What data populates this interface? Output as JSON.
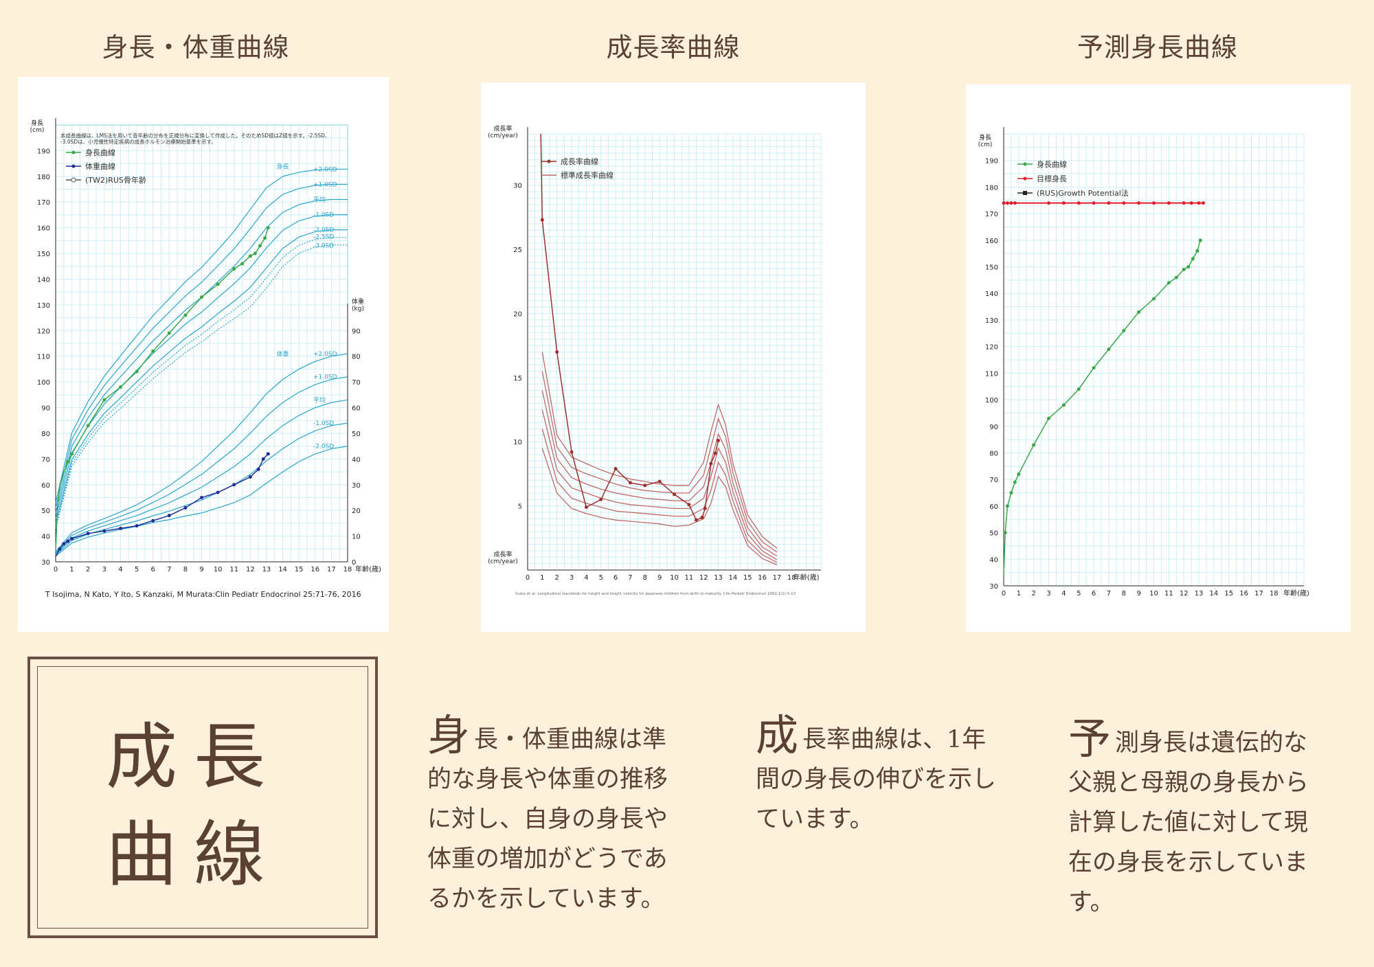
{
  "titles": {
    "left": "身長・体重曲線",
    "middle": "成長率曲線",
    "right": "予測身長曲線"
  },
  "chart_data": [
    {
      "type": "line",
      "title": "身長・体重曲線",
      "note": "本成長曲線は、LMS法を用いて各年齢の分布を正規分布に変換して作成した。そのためSD値はZ値を示す。-2.5SD、-3.0SDは、小児慢性特定疾病の成長ホルモン治療開始基準を示す。",
      "ylabel_left": "身長(cm)",
      "ylabel_right": "体重(kg)",
      "xlabel": "年齢(歳)",
      "x_ticks": [
        0,
        1,
        2,
        3,
        4,
        5,
        6,
        7,
        8,
        9,
        10,
        11,
        12,
        13,
        14,
        15,
        16,
        17,
        18
      ],
      "height_ticks": [
        30,
        40,
        50,
        60,
        70,
        80,
        90,
        100,
        110,
        120,
        130,
        140,
        150,
        160,
        170,
        180,
        190
      ],
      "weight_ticks": [
        0,
        10,
        20,
        30,
        40,
        50,
        60,
        70,
        80,
        90
      ],
      "legend": [
        "身長曲線",
        "体重曲線",
        "(TW2)RUS骨年齢"
      ],
      "height_group_label": "身長",
      "weight_group_label": "体重",
      "height_sd_labels": [
        "+2.0SD",
        "+1.0SD",
        "平均",
        "-1.0SD",
        "-2.0SD",
        "-2.5SD",
        "-3.0SD"
      ],
      "weight_sd_labels": [
        "+2.0SD",
        "+1.0SD",
        "平均",
        "-1.0SD",
        "-2.0SD"
      ],
      "height_reference": {
        "x": [
          0,
          1,
          2,
          3,
          4,
          5,
          6,
          7,
          8,
          9,
          10,
          11,
          12,
          13,
          14,
          15,
          16,
          17,
          18
        ],
        "mean": [
          49,
          75,
          86,
          95,
          102,
          109,
          116,
          122,
          128,
          133,
          139,
          145,
          152,
          160,
          166,
          169,
          170.5,
          171,
          171
        ],
        "sd": [
          2,
          2.6,
          3.2,
          3.6,
          4.1,
          4.5,
          4.9,
          5.2,
          5.5,
          5.8,
          6.2,
          6.8,
          7.6,
          7.8,
          7,
          6.3,
          6,
          5.9,
          5.9
        ],
        "z": [
          2,
          1,
          0,
          -1,
          -2,
          -2.5,
          -3
        ]
      },
      "weight_reference": {
        "x": [
          0,
          1,
          2,
          3,
          4,
          5,
          6,
          7,
          8,
          9,
          10,
          11,
          12,
          13,
          14,
          15,
          16,
          17,
          18
        ],
        "mean": [
          3,
          9.3,
          12,
          14,
          16,
          18,
          20.5,
          23,
          26,
          29,
          33,
          37,
          42,
          48,
          53,
          57,
          60,
          62,
          63
        ],
        "sd": [
          0.4,
          1,
          1.2,
          1.4,
          1.7,
          2.1,
          2.6,
          3.3,
          4.1,
          5,
          6,
          7,
          8,
          8.7,
          9,
          9,
          9,
          9,
          9
        ],
        "z": [
          2,
          1,
          0,
          -1,
          -2
        ]
      },
      "series": [
        {
          "name": "身長曲線",
          "x": [
            0,
            0.1,
            0.25,
            0.5,
            0.75,
            1,
            2,
            3,
            4,
            5,
            6,
            7,
            8,
            9,
            10,
            11,
            11.5,
            12,
            12.3,
            12.6,
            12.9,
            13.1
          ],
          "y": [
            34,
            50,
            60,
            65,
            69,
            72,
            83,
            93,
            98,
            104,
            112,
            119,
            126,
            133,
            138,
            144,
            146,
            149,
            150,
            153,
            156,
            160
          ]
        },
        {
          "name": "体重曲線",
          "x": [
            0,
            0.25,
            0.5,
            0.75,
            1,
            2,
            3,
            4,
            5,
            6,
            7,
            8,
            9,
            10,
            11,
            12,
            12.5,
            12.8,
            13.1
          ],
          "y": [
            2,
            5,
            7,
            8,
            9,
            11,
            12,
            13,
            14,
            16,
            18,
            21,
            25,
            27,
            30,
            33,
            36,
            40,
            42
          ]
        }
      ],
      "citation": "T Isojima, N Kato, Y Ito, S Kanzaki, M Murata:Clin Pediatr Endocrinol 25:71-76, 2016"
    },
    {
      "type": "line",
      "title": "成長率曲線",
      "ylabel": "成長率(cm/year)",
      "ylabel_bottom": "成長率(cm/year)",
      "xlabel": "年齢(歳)",
      "x_ticks": [
        0,
        1,
        2,
        3,
        4,
        5,
        6,
        7,
        8,
        9,
        10,
        11,
        12,
        13,
        14,
        15,
        16,
        17,
        18
      ],
      "y_ticks": [
        5,
        10,
        15,
        20,
        25,
        30
      ],
      "legend": [
        "成長率曲線",
        "標準成長率曲線"
      ],
      "reference_curves": {
        "x": [
          1,
          2,
          3,
          4,
          5,
          6,
          7,
          8,
          9,
          10,
          11,
          12,
          12.5,
          13,
          13.5,
          14,
          15,
          16,
          17
        ],
        "curves": [
          [
            17,
            10.5,
            8.8,
            8.3,
            7.8,
            7.4,
            7.1,
            6.9,
            6.7,
            6.6,
            6.6,
            8.4,
            10.8,
            12.9,
            11.3,
            8.3,
            4.3,
            2.6,
            1.7
          ],
          [
            15.5,
            9.6,
            8,
            7.5,
            7.1,
            6.7,
            6.4,
            6.2,
            6.1,
            6,
            6,
            7.4,
            9.6,
            11.8,
            10.4,
            7.6,
            3.8,
            2.2,
            1.4
          ],
          [
            14,
            8.7,
            7.2,
            6.7,
            6.3,
            6,
            5.8,
            5.6,
            5.5,
            5.4,
            5.4,
            6.5,
            8.4,
            10.6,
            9.4,
            6.8,
            3.3,
            1.8,
            1.1
          ],
          [
            12.5,
            7.8,
            6.4,
            6,
            5.6,
            5.3,
            5.1,
            5,
            4.9,
            4.8,
            4.8,
            5.6,
            7.3,
            9.5,
            8.4,
            6.1,
            2.8,
            1.5,
            0.8
          ],
          [
            11,
            6.9,
            5.6,
            5.2,
            4.9,
            4.6,
            4.5,
            4.4,
            4.3,
            4.2,
            4.2,
            4.8,
            6.2,
            8.4,
            7.4,
            5.4,
            2.3,
            1.2,
            0.6
          ],
          [
            9.5,
            6,
            4.8,
            4.4,
            4.1,
            3.9,
            3.8,
            3.7,
            3.6,
            3.4,
            3.5,
            4,
            5.2,
            7.3,
            6.5,
            4.7,
            1.9,
            0.9,
            0.4
          ]
        ]
      },
      "series": [
        {
          "name": "成長率曲線",
          "x": [
            0.9,
            1,
            2,
            3,
            4,
            5,
            6,
            7,
            8,
            9,
            10,
            11,
            11.5,
            11.9,
            12.1,
            12.5,
            12.8,
            13
          ],
          "y": [
            34,
            27.3,
            17,
            9.2,
            4.9,
            5.5,
            7.9,
            6.8,
            6.6,
            6.9,
            5.9,
            5.1,
            3.9,
            4.1,
            4.8,
            8.3,
            9.1,
            10.1
          ]
        }
      ],
      "citation": "Suwa et al. Longitudinal standards for height and height velocity for Japanese children from birth to maturity. Clin Pediatr Endocrinol 1992;1(1):5-13"
    },
    {
      "type": "line",
      "title": "予測身長曲線",
      "ylabel": "身長(cm)",
      "xlabel": "年齢(歳)",
      "x_ticks": [
        0,
        1,
        2,
        3,
        4,
        5,
        6,
        7,
        8,
        9,
        10,
        11,
        12,
        13,
        14,
        15,
        16,
        17,
        18
      ],
      "y_ticks": [
        30,
        40,
        50,
        60,
        70,
        80,
        90,
        100,
        110,
        120,
        130,
        140,
        150,
        160,
        170,
        180,
        190
      ],
      "legend": [
        "身長曲線",
        "目標身長",
        "(RUS)Growth Potential法"
      ],
      "series": [
        {
          "name": "身長曲線",
          "x": [
            0,
            0.1,
            0.25,
            0.5,
            0.75,
            1,
            2,
            3,
            4,
            5,
            6,
            7,
            8,
            9,
            10,
            11,
            11.5,
            12,
            12.3,
            12.6,
            12.9,
            13.1
          ],
          "y": [
            34,
            50,
            60,
            65,
            69,
            72,
            83,
            93,
            98,
            104,
            112,
            119,
            126,
            133,
            138,
            144,
            146,
            149,
            150,
            153,
            156,
            160
          ]
        },
        {
          "name": "目標身長",
          "x": [
            0,
            0.25,
            0.5,
            0.75,
            3,
            4,
            5,
            6,
            7,
            8,
            9,
            10,
            11,
            12,
            12.5,
            13,
            13.3
          ],
          "y": [
            174,
            174,
            174,
            174,
            174,
            174,
            174,
            174,
            174,
            174,
            174,
            174,
            174,
            174,
            174,
            174,
            174
          ]
        }
      ]
    }
  ],
  "feature": {
    "title_top": "成長",
    "title_bottom": "曲線"
  },
  "descriptions": [
    {
      "cap": "身",
      "text": "長・体重曲線は準的な身長や体重の推移に対し、自身の身長や体重の増加がどうであるかを示しています。"
    },
    {
      "cap": "成",
      "text": "長率曲線は、1年間の身長の伸びを示しています。"
    },
    {
      "cap": "予",
      "text": "測身長は遺伝的な父親と母親の身長から計算した値に対して現在の身長を示しています。"
    }
  ],
  "colors": {
    "background": "#fdf1dc",
    "text": "#5a4134",
    "grid": "#c9f0f4",
    "reference_blue": "#2aa3cf",
    "height_green": "#3aa84a",
    "weight_navy": "#1f2f96",
    "velocity_red": "#9c2f2f",
    "reference_red": "#c06767",
    "target_red": "#e21d2b"
  }
}
